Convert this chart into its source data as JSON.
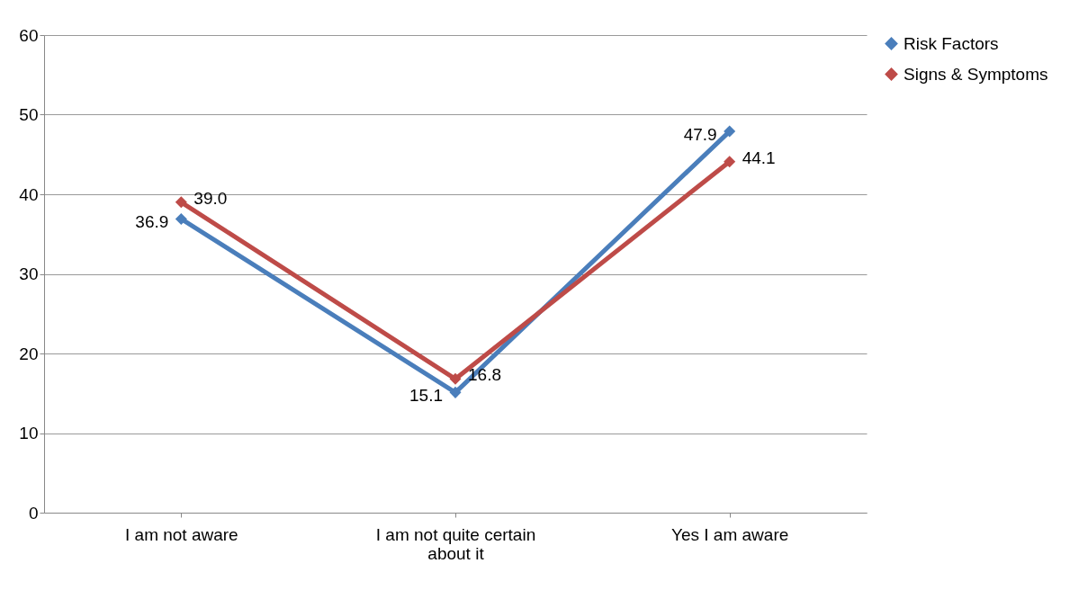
{
  "chart_data": {
    "type": "line",
    "categories": [
      "I am not aware",
      "I am not quite certain about it",
      "Yes I am aware"
    ],
    "series": [
      {
        "name": "Risk Factors",
        "color": "#4a7ebb",
        "values": [
          36.9,
          15.1,
          47.9
        ],
        "value_labels": [
          "36.9",
          "15.1",
          "47.9"
        ]
      },
      {
        "name": "Signs & Symptoms",
        "color": "#be4b48",
        "values": [
          39.0,
          16.8,
          44.1
        ],
        "value_labels": [
          "39.0",
          "16.8",
          "44.1"
        ]
      }
    ],
    "ylim": [
      0,
      60
    ],
    "yticks": [
      0,
      10,
      20,
      30,
      40,
      50,
      60
    ],
    "grid": "y",
    "legend": "right",
    "marker": "diamond",
    "line_style": "solid"
  }
}
